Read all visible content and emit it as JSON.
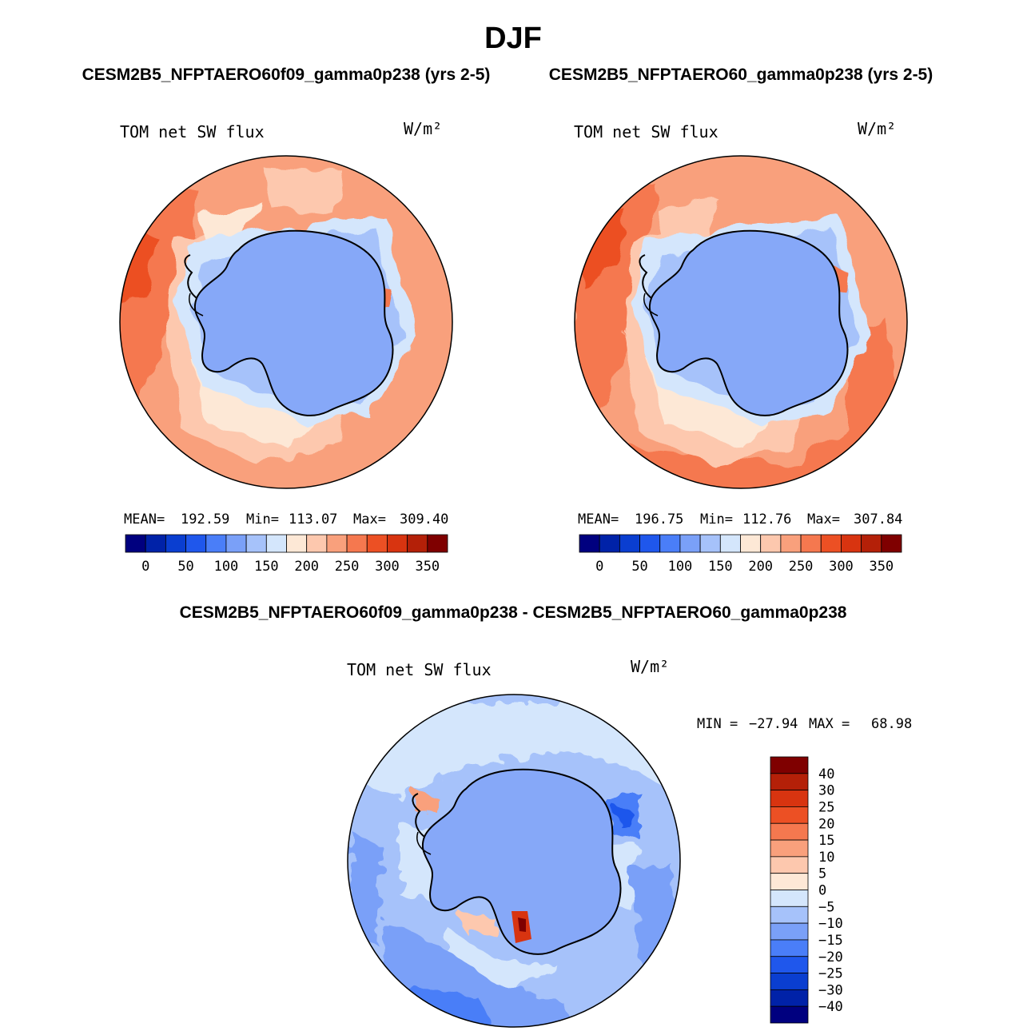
{
  "figure": {
    "season": "DJF",
    "left_title": "CESM2B5_NFPTAERO60f09_gamma0p238 (yrs 2-5)",
    "right_title": "CESM2B5_NFPTAERO60_gamma0p238 (yrs 2-5)",
    "diff_title": "CESM2B5_NFPTAERO60f09_gamma0p238 - CESM2B5_NFPTAERO60_gamma0p238"
  },
  "chart_data": [
    {
      "type": "heatmap",
      "projection": "south-polar-stereographic",
      "title": "TOM net SW flux",
      "units": "W/m²",
      "stats": {
        "mean_label": "MEAN=",
        "mean": "192.59",
        "min_label": "Min=",
        "min": "113.07",
        "max_label": "Max=",
        "max": "309.40"
      },
      "colorbar": {
        "orientation": "horizontal",
        "levels": [
          0,
          25,
          50,
          75,
          100,
          125,
          150,
          175,
          200,
          225,
          250,
          275,
          300,
          325,
          350
        ],
        "tick_labels": [
          "0",
          "50",
          "100",
          "150",
          "200",
          "250",
          "300",
          "350"
        ],
        "colors": [
          "#00007f",
          "#0022a8",
          "#0a3ed0",
          "#1f57ec",
          "#4a7ef8",
          "#7aa0f8",
          "#a6c2fa",
          "#d4e6fc",
          "#fde8d6",
          "#fdc8ae",
          "#f9a07c",
          "#f5784f",
          "#ec5024",
          "#d83410",
          "#b42008",
          "#7f0000"
        ]
      }
    },
    {
      "type": "heatmap",
      "projection": "south-polar-stereographic",
      "title": "TOM net SW flux",
      "units": "W/m²",
      "stats": {
        "mean_label": "MEAN=",
        "mean": "196.75",
        "min_label": "Min=",
        "min": "112.76",
        "max_label": "Max=",
        "max": "307.84"
      },
      "colorbar": {
        "orientation": "horizontal",
        "levels": [
          0,
          25,
          50,
          75,
          100,
          125,
          150,
          175,
          200,
          225,
          250,
          275,
          300,
          325,
          350
        ],
        "tick_labels": [
          "0",
          "50",
          "100",
          "150",
          "200",
          "250",
          "300",
          "350"
        ],
        "colors": [
          "#00007f",
          "#0022a8",
          "#0a3ed0",
          "#1f57ec",
          "#4a7ef8",
          "#7aa0f8",
          "#a6c2fa",
          "#d4e6fc",
          "#fde8d6",
          "#fdc8ae",
          "#f9a07c",
          "#f5784f",
          "#ec5024",
          "#d83410",
          "#b42008",
          "#7f0000"
        ]
      }
    },
    {
      "type": "heatmap",
      "projection": "south-polar-stereographic",
      "title": "TOM net SW flux",
      "units": "W/m²",
      "stats": {
        "min_label": "MIN =",
        "min": "−27.94",
        "max_label": "MAX =",
        "max": "68.98"
      },
      "colorbar": {
        "orientation": "vertical",
        "levels": [
          -40,
          -30,
          -25,
          -20,
          -15,
          -10,
          -5,
          0,
          5,
          10,
          15,
          20,
          25,
          30,
          40
        ],
        "tick_labels": [
          "40",
          "30",
          "25",
          "20",
          "15",
          "10",
          "5",
          "0",
          "−5",
          "−10",
          "−15",
          "−20",
          "−25",
          "−30",
          "−40"
        ],
        "colors": [
          "#7f0000",
          "#b42008",
          "#d83410",
          "#ec5024",
          "#f5784f",
          "#f9a07c",
          "#fdc8ae",
          "#fde8d6",
          "#d4e6fc",
          "#a6c2fa",
          "#7aa0f8",
          "#4a7ef8",
          "#1f57ec",
          "#0a3ed0",
          "#0022a8",
          "#00007f"
        ]
      }
    }
  ]
}
